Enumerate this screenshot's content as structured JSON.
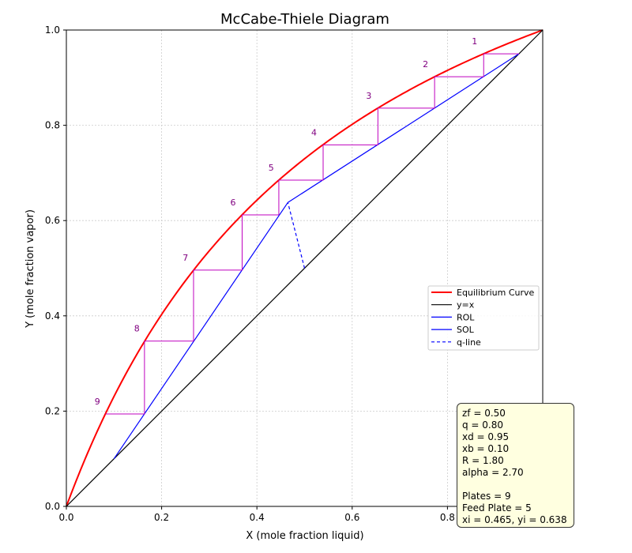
{
  "chart_data": {
    "type": "line",
    "title": "McCabe-Thiele Diagram",
    "xlabel": "X (mole fraction liquid)",
    "ylabel": "Y (mole fraction vapor)",
    "xlim": [
      0,
      1
    ],
    "ylim": [
      0,
      1
    ],
    "xticks": [
      "0.0",
      "0.2",
      "0.4",
      "0.6",
      "0.8"
    ],
    "yticks": [
      "0.0",
      "0.2",
      "0.4",
      "0.6",
      "0.8",
      "1.0"
    ],
    "grid": true,
    "legend_position": "center-right",
    "alpha": 2.7,
    "series": [
      {
        "name": "Equilibrium Curve",
        "color": "#ff0000",
        "kind": "equilibrium"
      },
      {
        "name": "y=x",
        "color": "#000000",
        "x": [
          0,
          1
        ],
        "y": [
          0,
          1
        ]
      },
      {
        "name": "ROL",
        "color": "#0000ff",
        "x": [
          0.465,
          0.95
        ],
        "y": [
          0.638,
          0.95
        ]
      },
      {
        "name": "SOL",
        "color": "#0000ff",
        "x": [
          0.1,
          0.465
        ],
        "y": [
          0.1,
          0.638
        ]
      },
      {
        "name": "q-line",
        "color": "#0000ff",
        "dashed": true,
        "x": [
          0.5,
          0.465
        ],
        "y": [
          0.5,
          0.638
        ]
      }
    ],
    "stages": {
      "color": "#bf00bf",
      "points": [
        {
          "x": 0.95,
          "y": 0.95
        },
        {
          "x": 0.876,
          "y": 0.95
        },
        {
          "x": 0.876,
          "y": 0.902
        },
        {
          "x": 0.773,
          "y": 0.902
        },
        {
          "x": 0.773,
          "y": 0.836
        },
        {
          "x": 0.654,
          "y": 0.836
        },
        {
          "x": 0.654,
          "y": 0.759
        },
        {
          "x": 0.539,
          "y": 0.759
        },
        {
          "x": 0.539,
          "y": 0.685
        },
        {
          "x": 0.446,
          "y": 0.685
        },
        {
          "x": 0.446,
          "y": 0.612
        },
        {
          "x": 0.369,
          "y": 0.612
        },
        {
          "x": 0.369,
          "y": 0.496
        },
        {
          "x": 0.267,
          "y": 0.496
        },
        {
          "x": 0.267,
          "y": 0.347
        },
        {
          "x": 0.164,
          "y": 0.347
        },
        {
          "x": 0.164,
          "y": 0.194
        },
        {
          "x": 0.082,
          "y": 0.194
        }
      ],
      "labels": [
        {
          "text": "1",
          "x": 0.857,
          "y": 0.97
        },
        {
          "text": "2",
          "x": 0.754,
          "y": 0.922
        },
        {
          "text": "3",
          "x": 0.635,
          "y": 0.856
        },
        {
          "text": "4",
          "x": 0.52,
          "y": 0.779
        },
        {
          "text": "5",
          "x": 0.43,
          "y": 0.705
        },
        {
          "text": "6",
          "x": 0.35,
          "y": 0.632
        },
        {
          "text": "7",
          "x": 0.25,
          "y": 0.516
        },
        {
          "text": "8",
          "x": 0.148,
          "y": 0.367
        },
        {
          "text": "9",
          "x": 0.065,
          "y": 0.214
        }
      ]
    }
  },
  "info_box": {
    "lines": [
      "zf = 0.50",
      "q = 0.80",
      "xd = 0.95",
      "xb = 0.10",
      "R = 1.80",
      "alpha = 2.70",
      "",
      "Plates = 9",
      "Feed Plate = 5",
      "xi = 0.465, yi = 0.638"
    ]
  }
}
